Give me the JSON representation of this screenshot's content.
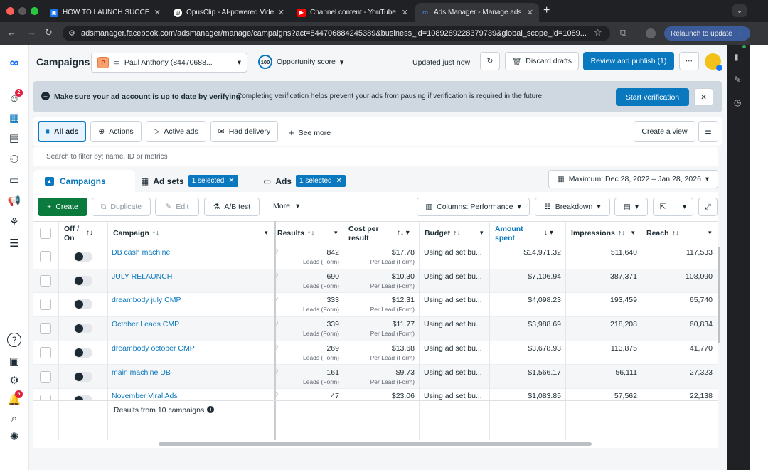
{
  "browser": {
    "tabs": [
      {
        "title": "HOW TO LAUNCH SUCCESS",
        "icon": "shield-icon"
      },
      {
        "title": "OpusClip - AI-powered Video",
        "icon": "opus-icon"
      },
      {
        "title": "Channel content - YouTube S",
        "icon": "youtube-icon"
      },
      {
        "title": "Ads Manager - Manage ads -",
        "icon": "meta-icon"
      }
    ],
    "url": "adsmanager.facebook.com/adsmanager/manage/campaigns?act=844706884245389&business_id=1089289228379739&global_scope_id=1089...",
    "relaunch_label": "Relaunch to update"
  },
  "header": {
    "title": "Campaigns",
    "account_initial": "P",
    "account_name": "Paul Anthony (84470688...",
    "opportunity_value": "100",
    "opportunity_label": "Opportunity score",
    "updated_text": "Updated just now",
    "discard_label": "Discard drafts",
    "review_label": "Review and publish (1)"
  },
  "banner": {
    "bold_text": "Make sure your ad account is up to date by verifying",
    "text": "Completing verification helps prevent your ads from pausing if verification is required in the future.",
    "button_label": "Start verification"
  },
  "filters": {
    "items": [
      "All ads",
      "Actions",
      "Active ads",
      "Had delivery"
    ],
    "see_more": "See more",
    "create_view": "Create a view"
  },
  "search": {
    "placeholder": "Search to filter by: name, ID or metrics"
  },
  "level_tabs": {
    "campaigns": "Campaigns",
    "adsets": "Ad sets",
    "adsets_selected": "1 selected",
    "ads": "Ads",
    "ads_selected": "1 selected",
    "date_range": "Maximum: Dec 28, 2022 – Jan 28, 2026"
  },
  "toolbar": {
    "create": "Create",
    "duplicate": "Duplicate",
    "edit": "Edit",
    "ab_test": "A/B test",
    "more": "More",
    "columns": "Columns: Performance",
    "breakdown": "Breakdown"
  },
  "table": {
    "headers": {
      "off_on": "Off / On",
      "campaign": "Campaign",
      "results": "Results",
      "cost_per_result": "Cost per result",
      "budget": "Budget",
      "amount_spent": "Amount spent",
      "impressions": "Impressions",
      "reach": "Reach"
    },
    "rows": [
      {
        "name": "DB cash machine",
        "results": "842",
        "results_sub": "Leads (Form)",
        "cost": "$17.78",
        "cost_sub": "Per Lead (Form)",
        "budget": "Using ad set bu...",
        "spent": "$14,971.32",
        "impressions": "511,640",
        "reach": "117,533"
      },
      {
        "name": "JULY RELAUNCH",
        "results": "690",
        "results_sub": "Leads (Form)",
        "cost": "$10.30",
        "cost_sub": "Per Lead (Form)",
        "budget": "Using ad set bu...",
        "spent": "$7,106.94",
        "impressions": "387,371",
        "reach": "108,090"
      },
      {
        "name": "dreambody july CMP",
        "results": "333",
        "results_sub": "Leads (Form)",
        "cost": "$12.31",
        "cost_sub": "Per Lead (Form)",
        "budget": "Using ad set bu...",
        "spent": "$4,098.23",
        "impressions": "193,459",
        "reach": "65,740"
      },
      {
        "name": "October Leads CMP",
        "results": "339",
        "results_sub": "Leads (Form)",
        "cost": "$11.77",
        "cost_sub": "Per Lead (Form)",
        "budget": "Using ad set bu...",
        "spent": "$3,988.69",
        "impressions": "218,208",
        "reach": "60,834"
      },
      {
        "name": "dreambody october CMP",
        "results": "269",
        "results_sub": "Leads (Form)",
        "cost": "$13.68",
        "cost_sub": "Per Lead (Form)",
        "budget": "Using ad set bu...",
        "spent": "$3,678.93",
        "impressions": "113,875",
        "reach": "41,770"
      },
      {
        "name": "main machine DB",
        "results": "161",
        "results_sub": "Leads (Form)",
        "cost": "$9.73",
        "cost_sub": "Per Lead (Form)",
        "budget": "Using ad set bu...",
        "spent": "$1,566.17",
        "impressions": "56,111",
        "reach": "27,323"
      },
      {
        "name": "November Viral Ads",
        "results": "47",
        "results_sub": "",
        "cost": "$23.06",
        "cost_sub": "",
        "budget": "Using ad set bu...",
        "spent": "$1,083.85",
        "impressions": "57,562",
        "reach": "22,138"
      }
    ],
    "footer": "Results from 10 campaigns"
  },
  "nav_badges": {
    "campaigns": "2",
    "notifications": "5"
  }
}
